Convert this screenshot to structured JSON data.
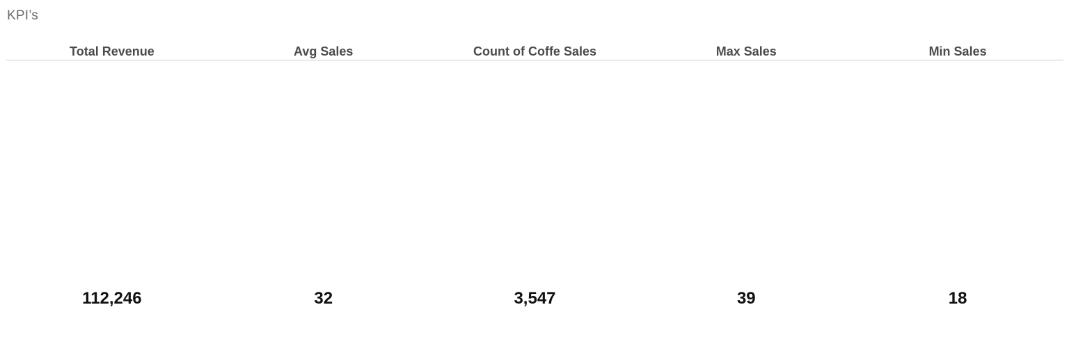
{
  "visual": {
    "title": "KPI’s"
  },
  "kpis": [
    {
      "label": "Total Revenue",
      "value": "112,246"
    },
    {
      "label": "Avg Sales",
      "value": "32"
    },
    {
      "label": "Count of Coffe Sales",
      "value": "3,547"
    },
    {
      "label": "Max Sales",
      "value": "39"
    },
    {
      "label": "Min Sales",
      "value": "18"
    }
  ],
  "colors": {
    "title": "#6b6b6b",
    "header_text": "#4b4b4b",
    "value_text": "#111111",
    "divider": "#cfcfcf",
    "background": "#ffffff"
  }
}
